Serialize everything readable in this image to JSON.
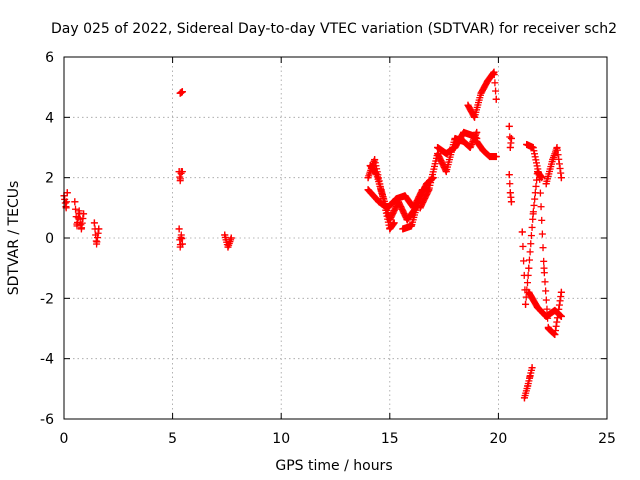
{
  "chart_data": {
    "type": "scatter",
    "title": "Day 025 of 2022, Sidereal Day-to-day VTEC variation (SDTVAR) for receiver sch2",
    "xlabel": "GPS time / hours",
    "ylabel": "SDTVAR / TECUs",
    "xlim": [
      0,
      25
    ],
    "ylim": [
      -6,
      6
    ],
    "xticks": [
      "0",
      "5",
      "10",
      "15",
      "20",
      "25"
    ],
    "yticks": [
      "-6",
      "-4",
      "-2",
      "0",
      "2",
      "4",
      "6"
    ],
    "grid": true,
    "marker": "+",
    "color": "#ff0000",
    "segments": [
      {
        "x0": 0.0,
        "x1": 0.15,
        "pts": [
          [
            0.0,
            1.4
          ],
          [
            0.1,
            1.0
          ],
          [
            0.15,
            1.5
          ]
        ]
      },
      {
        "x0": 0.5,
        "x1": 0.9,
        "pts": [
          [
            0.5,
            1.2
          ],
          [
            0.6,
            0.4
          ],
          [
            0.7,
            0.9
          ],
          [
            0.8,
            0.3
          ],
          [
            0.9,
            0.8
          ]
        ]
      },
      {
        "x0": 1.4,
        "x1": 1.6,
        "pts": [
          [
            1.4,
            0.5
          ],
          [
            1.5,
            -0.2
          ],
          [
            1.6,
            0.3
          ]
        ]
      },
      {
        "x0": 5.3,
        "x1": 5.45,
        "pts": [
          [
            5.3,
            0.3
          ],
          [
            5.35,
            -0.3
          ],
          [
            5.4,
            0.1
          ],
          [
            5.45,
            -0.2
          ]
        ]
      },
      {
        "x0": 5.3,
        "x1": 5.45,
        "pts": [
          [
            5.3,
            2.2
          ],
          [
            5.35,
            1.9
          ],
          [
            5.4,
            2.2
          ]
        ]
      },
      {
        "x0": 5.35,
        "x1": 5.45,
        "pts": [
          [
            5.35,
            4.8
          ],
          [
            5.45,
            4.85
          ]
        ]
      },
      {
        "x0": 7.4,
        "x1": 7.7,
        "pts": [
          [
            7.4,
            0.1
          ],
          [
            7.55,
            -0.3
          ],
          [
            7.7,
            0.0
          ]
        ]
      },
      {
        "x0": 14.0,
        "x1": 16.2,
        "pts": [
          [
            14.0,
            2.0
          ],
          [
            14.3,
            2.6
          ],
          [
            14.6,
            1.6
          ],
          [
            15.0,
            0.6
          ],
          [
            15.4,
            1.2
          ],
          [
            15.8,
            0.6
          ],
          [
            16.2,
            1.0
          ]
        ]
      },
      {
        "x0": 14.0,
        "x1": 16.5,
        "pts": [
          [
            14.0,
            1.6
          ],
          [
            14.5,
            1.2
          ],
          [
            14.9,
            1.0
          ],
          [
            15.3,
            1.3
          ],
          [
            15.7,
            1.4
          ],
          [
            16.1,
            1.0
          ],
          [
            16.5,
            1.6
          ]
        ]
      },
      {
        "x0": 14.1,
        "x1": 15.2,
        "pts": [
          [
            14.1,
            2.4
          ],
          [
            14.4,
            2.1
          ],
          [
            14.7,
            1.3
          ],
          [
            15.0,
            0.3
          ],
          [
            15.2,
            0.5
          ]
        ]
      },
      {
        "x0": 15.6,
        "x1": 17.0,
        "pts": [
          [
            15.6,
            0.3
          ],
          [
            16.0,
            0.4
          ],
          [
            16.3,
            1.2
          ],
          [
            16.7,
            1.8
          ],
          [
            17.0,
            2.0
          ]
        ]
      },
      {
        "x0": 16.4,
        "x1": 19.0,
        "pts": [
          [
            16.4,
            1.0
          ],
          [
            16.8,
            1.6
          ],
          [
            17.2,
            2.8
          ],
          [
            17.6,
            2.2
          ],
          [
            18.0,
            3.3
          ],
          [
            18.4,
            3.2
          ],
          [
            18.7,
            3.0
          ],
          [
            19.0,
            3.5
          ]
        ]
      },
      {
        "x0": 17.2,
        "x1": 19.0,
        "pts": [
          [
            17.2,
            3.0
          ],
          [
            17.6,
            2.8
          ],
          [
            18.0,
            3.0
          ],
          [
            18.4,
            3.5
          ],
          [
            18.8,
            3.4
          ],
          [
            19.0,
            3.3
          ]
        ]
      },
      {
        "x0": 18.6,
        "x1": 19.9,
        "pts": [
          [
            18.6,
            4.4
          ],
          [
            18.9,
            4.0
          ],
          [
            19.2,
            4.8
          ],
          [
            19.5,
            5.2
          ],
          [
            19.8,
            5.5
          ],
          [
            19.9,
            4.6
          ]
        ]
      },
      {
        "x0": 19.0,
        "x1": 19.9,
        "pts": [
          [
            19.0,
            3.2
          ],
          [
            19.3,
            2.9
          ],
          [
            19.6,
            2.7
          ],
          [
            19.9,
            2.7
          ]
        ]
      },
      {
        "x0": 20.5,
        "x1": 20.6,
        "pts": [
          [
            20.5,
            3.7
          ],
          [
            20.55,
            3.0
          ],
          [
            20.6,
            3.3
          ]
        ]
      },
      {
        "x0": 20.5,
        "x1": 20.6,
        "pts": [
          [
            20.5,
            2.1
          ],
          [
            20.55,
            1.5
          ],
          [
            20.6,
            1.2
          ]
        ]
      },
      {
        "x0": 21.1,
        "x1": 22.0,
        "pts": [
          [
            21.1,
            0.2
          ],
          [
            21.25,
            -2.2
          ],
          [
            21.4,
            -1.0
          ],
          [
            21.6,
            0.8
          ],
          [
            21.8,
            2.2
          ],
          [
            22.0,
            2.0
          ]
        ]
      },
      {
        "x0": 21.3,
        "x1": 22.9,
        "pts": [
          [
            21.3,
            3.1
          ],
          [
            21.6,
            3.0
          ],
          [
            21.9,
            2.0
          ],
          [
            22.1,
            -1.0
          ],
          [
            22.3,
            -3.0
          ],
          [
            22.6,
            -3.2
          ],
          [
            22.9,
            -1.8
          ]
        ]
      },
      {
        "x0": 21.4,
        "x1": 22.9,
        "pts": [
          [
            21.4,
            -1.8
          ],
          [
            21.8,
            -2.3
          ],
          [
            22.2,
            -2.6
          ],
          [
            22.6,
            -2.4
          ],
          [
            22.9,
            -2.6
          ]
        ]
      },
      {
        "x0": 22.2,
        "x1": 22.9,
        "pts": [
          [
            22.2,
            1.8
          ],
          [
            22.5,
            2.6
          ],
          [
            22.7,
            3.0
          ],
          [
            22.9,
            2.0
          ]
        ]
      },
      {
        "x0": 21.2,
        "x1": 21.55,
        "pts": [
          [
            21.2,
            -5.3
          ],
          [
            21.35,
            -4.9
          ],
          [
            21.45,
            -4.6
          ],
          [
            21.55,
            -4.3
          ]
        ]
      }
    ]
  }
}
